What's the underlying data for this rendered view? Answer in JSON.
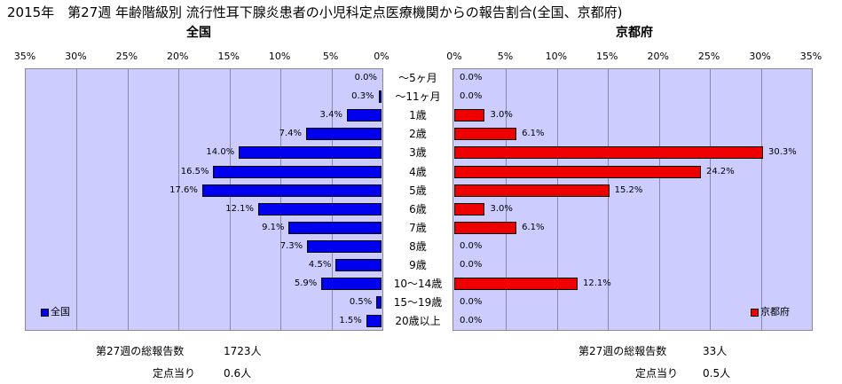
{
  "title": "2015年　第27週 年齢階級別 流行性耳下腺炎患者の小児科定点医療機関からの報告割合(全国、京都府)",
  "ticks": [
    "35%",
    "30%",
    "25%",
    "20%",
    "15%",
    "10%",
    "5%",
    "0%"
  ],
  "ticks_right": [
    "0%",
    "5%",
    "10%",
    "15%",
    "20%",
    "25%",
    "30%",
    "35%"
  ],
  "chart_data": [
    {
      "type": "bar",
      "title": "全国",
      "orientation": "horizontal",
      "direction": "leftward",
      "xlim": [
        0,
        35
      ],
      "categories": [
        "～5ヶ月",
        "～11ヶ月",
        "1歳",
        "2歳",
        "3歳",
        "4歳",
        "5歳",
        "6歳",
        "7歳",
        "8歳",
        "9歳",
        "10～14歳",
        "15～19歳",
        "20歳以上"
      ],
      "series": [
        {
          "name": "全国",
          "color": "#0000ee",
          "values": [
            0.0,
            0.3,
            3.4,
            7.4,
            14.0,
            16.5,
            17.6,
            12.1,
            9.1,
            7.3,
            4.5,
            5.9,
            0.5,
            1.5
          ],
          "labels": [
            "0.0%",
            "0.3%",
            "3.4%",
            "7.4%",
            "14.0%",
            "16.5%",
            "17.6%",
            "12.1%",
            "9.1%",
            "7.3%",
            "4.5%",
            "5.9%",
            "0.5%",
            "1.5%"
          ]
        }
      ],
      "grid": true,
      "legend_position": "bottom-left"
    },
    {
      "type": "bar",
      "title": "京都府",
      "orientation": "horizontal",
      "direction": "rightward",
      "xlim": [
        0,
        35
      ],
      "categories": [
        "～5ヶ月",
        "～11ヶ月",
        "1歳",
        "2歳",
        "3歳",
        "4歳",
        "5歳",
        "6歳",
        "7歳",
        "8歳",
        "9歳",
        "10～14歳",
        "15～19歳",
        "20歳以上"
      ],
      "series": [
        {
          "name": "京都府",
          "color": "#ee0000",
          "values": [
            0.0,
            0.0,
            3.0,
            6.1,
            30.3,
            24.2,
            15.2,
            3.0,
            6.1,
            0.0,
            0.0,
            12.1,
            0.0,
            0.0
          ],
          "labels": [
            "0.0%",
            "0.0%",
            "3.0%",
            "6.1%",
            "30.3%",
            "24.2%",
            "15.2%",
            "3.0%",
            "6.1%",
            "0.0%",
            "0.0%",
            "12.1%",
            "0.0%",
            "0.0%"
          ]
        }
      ],
      "grid": true,
      "legend_position": "bottom-right"
    }
  ],
  "footer": {
    "left_total_label": "第27週の総報告数",
    "left_total_value": "1723人",
    "left_per_label": "定点当り",
    "left_per_value": "0.6人",
    "right_total_label": "第27週の総報告数",
    "right_total_value": "33人",
    "right_per_label": "定点当り",
    "right_per_value": "0.5人"
  }
}
